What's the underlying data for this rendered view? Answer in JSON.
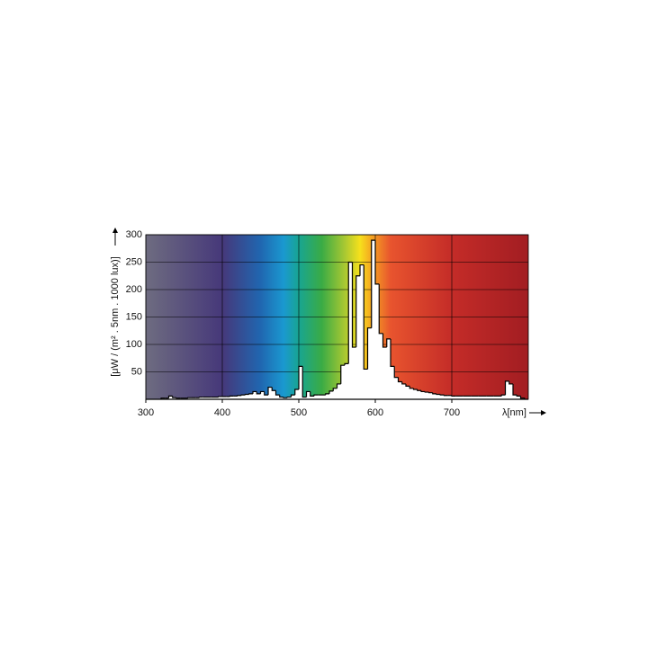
{
  "chart_data": {
    "type": "histogram",
    "ylabel": "[μW / (m² . 5nm . 1000 lux)]",
    "xlabel": "λ[nm]",
    "xlim": [
      300,
      800
    ],
    "xticks": [
      300,
      400,
      500,
      600,
      700
    ],
    "ylim": [
      0,
      300
    ],
    "yticks": [
      50,
      100,
      150,
      200,
      250,
      300
    ],
    "grid": true,
    "color": "#ffffff",
    "edgecolor": "#000000",
    "bins": [
      320,
      325,
      330,
      335,
      340,
      345,
      350,
      355,
      360,
      365,
      370,
      375,
      380,
      385,
      390,
      395,
      400,
      405,
      410,
      415,
      420,
      425,
      430,
      435,
      440,
      445,
      450,
      455,
      460,
      465,
      470,
      475,
      480,
      485,
      490,
      495,
      500,
      505,
      510,
      515,
      520,
      525,
      530,
      535,
      540,
      545,
      550,
      555,
      560,
      565,
      570,
      575,
      580,
      585,
      590,
      595,
      600,
      605,
      610,
      615,
      620,
      625,
      630,
      635,
      640,
      645,
      650,
      655,
      660,
      665,
      670,
      675,
      680,
      685,
      690,
      695,
      700,
      705,
      710,
      715,
      720,
      725,
      730,
      735,
      740,
      745,
      750,
      755,
      760,
      765,
      770,
      775,
      780,
      785,
      790,
      795
    ],
    "values": [
      2,
      2,
      6,
      3,
      2,
      2,
      2,
      3,
      3,
      3,
      4,
      4,
      4,
      4,
      4,
      5,
      5,
      5,
      6,
      6,
      7,
      8,
      9,
      10,
      14,
      10,
      14,
      8,
      22,
      16,
      8,
      4,
      3,
      4,
      8,
      18,
      60,
      4,
      14,
      6,
      8,
      8,
      8,
      10,
      15,
      20,
      28,
      62,
      65,
      250,
      95,
      225,
      245,
      55,
      130,
      290,
      210,
      120,
      95,
      110,
      60,
      40,
      32,
      28,
      24,
      20,
      18,
      16,
      14,
      13,
      12,
      10,
      9,
      8,
      7,
      7,
      6,
      6,
      6,
      6,
      6,
      6,
      6,
      6,
      6,
      6,
      6,
      6,
      6,
      8,
      33,
      28,
      8,
      6,
      2
    ]
  }
}
